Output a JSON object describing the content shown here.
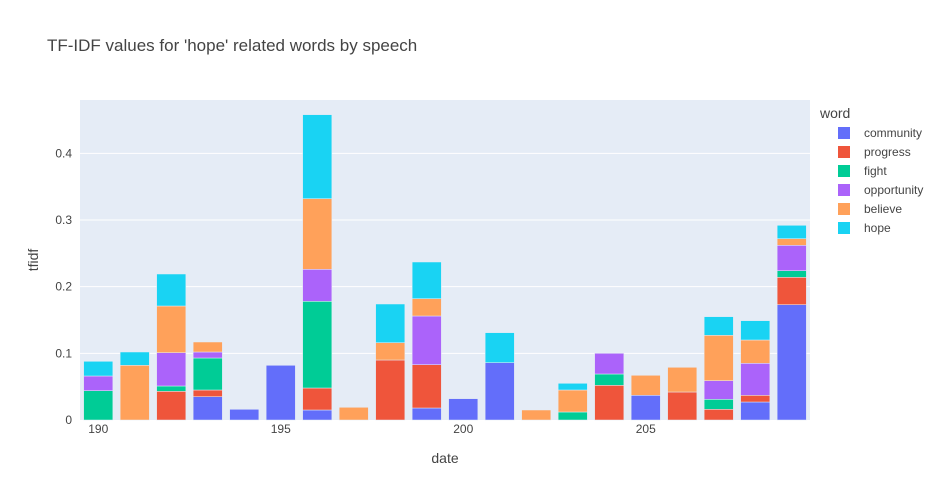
{
  "chart_data": {
    "type": "bar",
    "barmode": "stack",
    "title": "TF-IDF values for 'hope' related words by speech",
    "xlabel": "date",
    "ylabel": "tfidf",
    "xlim": [
      189.5,
      209.5
    ],
    "ylim": [
      0,
      0.48
    ],
    "x_ticks": [
      190,
      195,
      200,
      205
    ],
    "x_tick_labels": [
      "190",
      "195",
      "200",
      "205"
    ],
    "y_ticks": [
      0,
      0.1,
      0.2,
      0.3,
      0.4
    ],
    "y_tick_labels": [
      "0",
      "0.1",
      "0.2",
      "0.3",
      "0.4"
    ],
    "grid": true,
    "legend_title": "word",
    "legend_position": "right",
    "x": [
      190,
      191,
      192,
      193,
      194,
      195,
      196,
      197,
      198,
      199,
      200,
      201,
      202,
      203,
      204,
      205,
      206,
      207,
      208,
      209
    ],
    "series": [
      {
        "name": "community",
        "color": "#636efa",
        "values": [
          0,
          0,
          0,
          0.035,
          0.016,
          0.082,
          0.015,
          0,
          0,
          0.018,
          0.032,
          0.086,
          0,
          0,
          0,
          0.037,
          0,
          0,
          0.027,
          0.173
        ]
      },
      {
        "name": "progress",
        "color": "#ef553b",
        "values": [
          0,
          0,
          0.043,
          0.01,
          0,
          0,
          0.033,
          0,
          0.09,
          0.065,
          0,
          0,
          0,
          0,
          0.052,
          0,
          0.042,
          0.016,
          0.01,
          0.041
        ]
      },
      {
        "name": "fight",
        "color": "#00cc96",
        "values": [
          0.044,
          0,
          0.008,
          0.048,
          0,
          0,
          0.13,
          0,
          0,
          0,
          0,
          0,
          0,
          0.012,
          0.017,
          0,
          0,
          0.015,
          0,
          0.01
        ]
      },
      {
        "name": "opportunity",
        "color": "#ab63fa",
        "values": [
          0.022,
          0,
          0.05,
          0.009,
          0,
          0,
          0.048,
          0,
          0,
          0.073,
          0,
          0,
          0,
          0,
          0.031,
          0,
          0,
          0.028,
          0.048,
          0.038
        ]
      },
      {
        "name": "believe",
        "color": "#ffa15a",
        "values": [
          0,
          0.082,
          0.07,
          0.015,
          0,
          0,
          0.106,
          0.019,
          0.026,
          0.026,
          0,
          0,
          0.015,
          0.033,
          0,
          0.03,
          0.037,
          0.068,
          0.035,
          0.01
        ]
      },
      {
        "name": "hope",
        "color": "#19d3f3",
        "values": [
          0.022,
          0.02,
          0.048,
          0,
          0,
          0,
          0.126,
          0,
          0.058,
          0.055,
          0,
          0.045,
          0,
          0.01,
          0,
          0,
          0,
          0.028,
          0.029,
          0.02
        ]
      }
    ]
  }
}
